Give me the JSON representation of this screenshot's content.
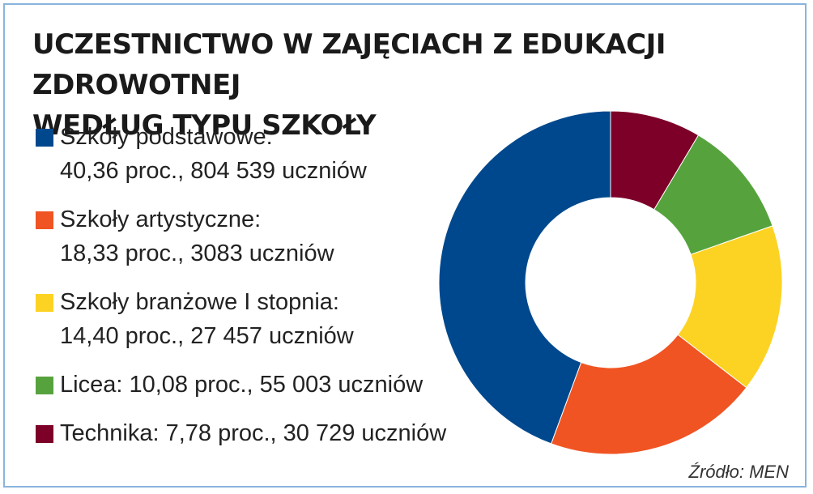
{
  "chart_data": {
    "type": "pie",
    "title_lines": [
      "UCZESTNICTWO W ZAJĘCIACH Z EDUKACJI ZDROWOTNEJ",
      "WEDŁUG TYPU SZKOŁY"
    ],
    "slices": [
      {
        "name": "Szkoły podstawowe:",
        "detail": "40,36 proc., 804 539 uczniów",
        "value": 40.36,
        "color": "#00488d"
      },
      {
        "name": "Szkoły artystyczne:",
        "detail": "18,33 proc., 3083 uczniów",
        "value": 18.33,
        "color": "#f05423"
      },
      {
        "name": "Szkoły branżowe I stopnia:",
        "detail": "14,40 proc., 27 457 uczniów",
        "value": 14.4,
        "color": "#fcd323"
      },
      {
        "name": "Licea: 10,08 proc., 55 003 uczniów",
        "detail": "",
        "value": 10.08,
        "color": "#56a33e"
      },
      {
        "name": "Technika: 7,78 proc., 30 729 uczniów",
        "detail": "",
        "value": 7.78,
        "color": "#7c0027"
      }
    ],
    "source": "Źródło: MEN"
  }
}
